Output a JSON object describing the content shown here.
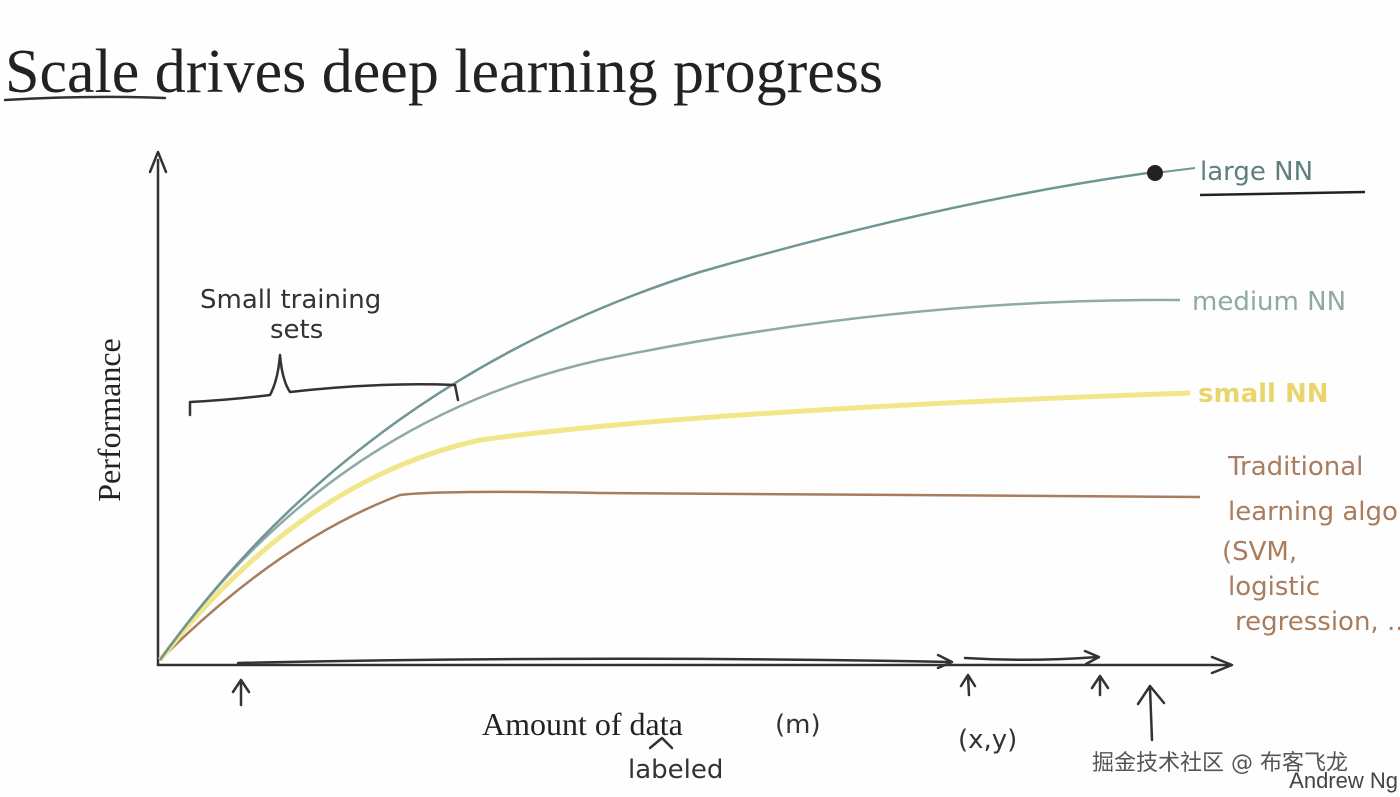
{
  "header": {
    "title": "Scale drives deep learning progress"
  },
  "axes": {
    "y_label": "Performance",
    "x_label": "Amount of data",
    "x_unit": "(m)",
    "x_note": "labeled",
    "pair": "(x,y)"
  },
  "annotations": {
    "small_sets": [
      "Small training",
      "sets"
    ]
  },
  "curves": [
    {
      "label": [
        "large NN"
      ]
    },
    {
      "label": [
        "medium NN"
      ]
    },
    {
      "label": [
        "small NN"
      ]
    },
    {
      "label": [
        "Traditional",
        "learning algo",
        "(SVM,",
        "logistic",
        "regression, ...)"
      ]
    }
  ],
  "footer": {
    "watermark": "掘金技术社区 @ 布客飞龙",
    "author": "Andrew Ng"
  }
}
